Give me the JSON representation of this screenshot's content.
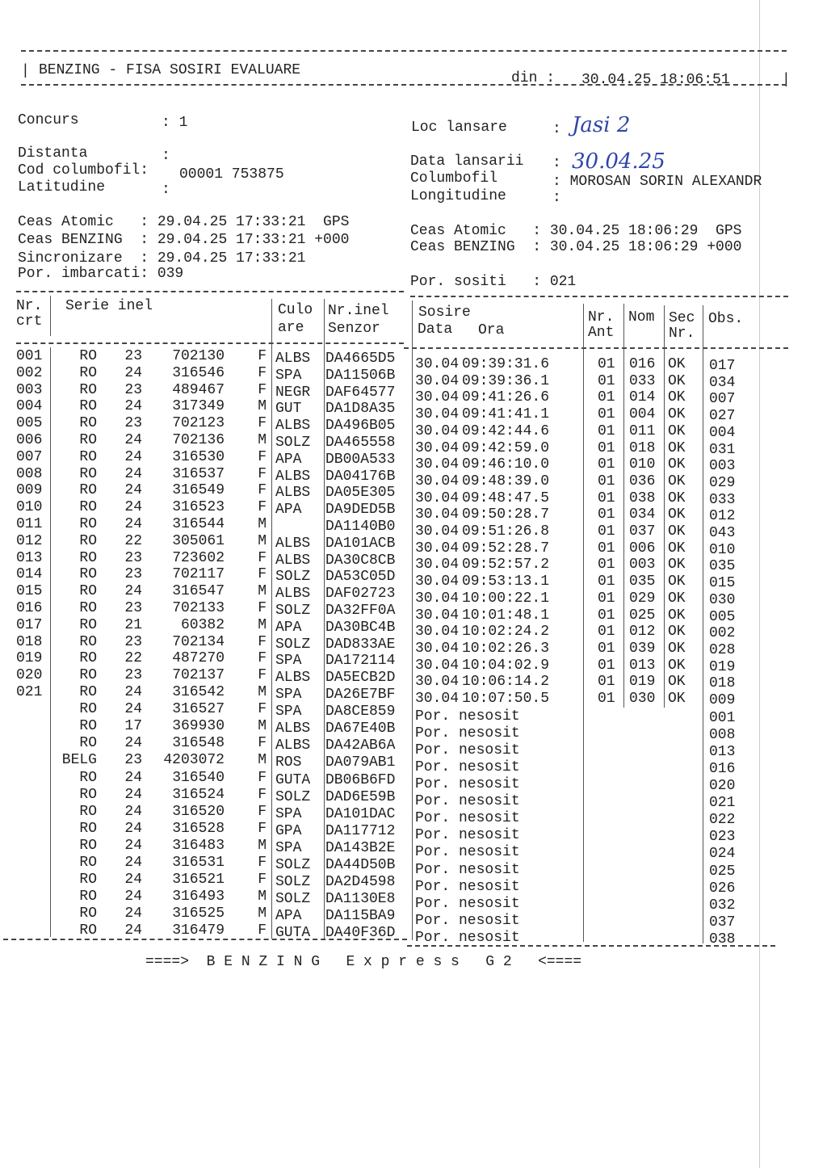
{
  "header": {
    "title": "BENZING - FISA SOSIRI EVALUARE",
    "din_label": "din :",
    "din_value": "30.04.25 18:06:51"
  },
  "info": {
    "concurs_label": "Concurs",
    "concurs_value": ": 1",
    "distanta_label": "Distanta",
    "distanta_value": ":",
    "cod_label": "Cod columbofil:",
    "cod_value": "00001 753875",
    "latitudine_label": "Latitudine",
    "latitudine_value": ":",
    "loc_label": "Loc lansare",
    "loc_sep": ":",
    "loc_value": "Jasi 2",
    "data_lansarii_label": "Data lansarii",
    "data_lansarii_sep": ":",
    "data_lansarii_value": "30.04.25",
    "columbofil_label": "Columbofil",
    "columbofil_value": ": MOROSAN SORIN ALEXANDR",
    "longitudine_label": "Longitudine",
    "longitudine_value": ":",
    "left_ceas_atomic": "Ceas Atomic   : 29.04.25 17:33:21  GPS",
    "left_ceas_benzing": "Ceas BENZING  : 29.04.25 17:33:21 +000",
    "sincronizare": "Sincronizare  : 29.04.25 17:33:21",
    "imbarcati": "Por. imbarcati: 039",
    "right_ceas_atomic": "Ceas Atomic   : 30.04.25 18:06:29  GPS",
    "right_ceas_benzing": "Ceas BENZING  : 30.04.25 18:06:29 +000",
    "sositi": "Por. sositi   : 021"
  },
  "columns": {
    "nr": "Nr.",
    "crt": "crt",
    "serie": "Serie inel",
    "culo": "Culo",
    "are": "are",
    "nrinel": "Nr.inel",
    "senzor": "Senzor",
    "sosire": "Sosire",
    "data": "Data",
    "ora": "Ora",
    "nrant1": "Nr.",
    "nrant2": "Ant",
    "nom": "Nom",
    "sec1": "Sec",
    "sec2": "Nr.",
    "obs": "Obs."
  },
  "rows": [
    [
      "001",
      "RO",
      "23",
      "702130",
      "F",
      "ALBS",
      "DA4665D5",
      "30.04",
      "09:39:31.6",
      "01",
      "016",
      "OK",
      "017"
    ],
    [
      "002",
      "RO",
      "24",
      "316546",
      "F",
      "SPA",
      "DA11506B",
      "30.04",
      "09:39:36.1",
      "01",
      "033",
      "OK",
      "034"
    ],
    [
      "003",
      "RO",
      "23",
      "489467",
      "F",
      "NEGR",
      "DAF64577",
      "30.04",
      "09:41:26.6",
      "01",
      "014",
      "OK",
      "007"
    ],
    [
      "004",
      "RO",
      "24",
      "317349",
      "M",
      "GUT",
      "DA1D8A35",
      "30.04",
      "09:41:41.1",
      "01",
      "004",
      "OK",
      "027"
    ],
    [
      "005",
      "RO",
      "23",
      "702123",
      "F",
      "ALBS",
      "DA496B05",
      "30.04",
      "09:42:44.6",
      "01",
      "011",
      "OK",
      "004"
    ],
    [
      "006",
      "RO",
      "24",
      "702136",
      "M",
      "SOLZ",
      "DA465558",
      "30.04",
      "09:42:59.0",
      "01",
      "018",
      "OK",
      "031"
    ],
    [
      "007",
      "RO",
      "24",
      "316530",
      "F",
      "APA",
      "DB00A533",
      "30.04",
      "09:46:10.0",
      "01",
      "010",
      "OK",
      "003"
    ],
    [
      "008",
      "RO",
      "24",
      "316537",
      "F",
      "ALBS",
      "DA04176B",
      "30.04",
      "09:48:39.0",
      "01",
      "036",
      "OK",
      "029"
    ],
    [
      "009",
      "RO",
      "24",
      "316549",
      "F",
      "ALBS",
      "DA05E305",
      "30.04",
      "09:48:47.5",
      "01",
      "038",
      "OK",
      "033"
    ],
    [
      "010",
      "RO",
      "24",
      "316523",
      "F",
      "APA",
      "DA9DED5B",
      "30.04",
      "09:50:28.7",
      "01",
      "034",
      "OK",
      "012"
    ],
    [
      "011",
      "RO",
      "24",
      "316544",
      "M",
      "",
      "DA1140B0",
      "30.04",
      "09:51:26.8",
      "01",
      "037",
      "OK",
      "043"
    ],
    [
      "012",
      "RO",
      "22",
      "305061",
      "M",
      "ALBS",
      "DA101ACB",
      "30.04",
      "09:52:28.7",
      "01",
      "006",
      "OK",
      "010"
    ],
    [
      "013",
      "RO",
      "23",
      "723602",
      "F",
      "ALBS",
      "DA30C8CB",
      "30.04",
      "09:52:57.2",
      "01",
      "003",
      "OK",
      "035"
    ],
    [
      "014",
      "RO",
      "23",
      "702117",
      "F",
      "SOLZ",
      "DA53C05D",
      "30.04",
      "09:53:13.1",
      "01",
      "035",
      "OK",
      "015"
    ],
    [
      "015",
      "RO",
      "24",
      "316547",
      "M",
      "ALBS",
      "DAF02723",
      "30.04",
      "10:00:22.1",
      "01",
      "029",
      "OK",
      "030"
    ],
    [
      "016",
      "RO",
      "23",
      "702133",
      "F",
      "SOLZ",
      "DA32FF0A",
      "30.04",
      "10:01:48.1",
      "01",
      "025",
      "OK",
      "005"
    ],
    [
      "017",
      "RO",
      "21",
      "60382",
      "M",
      "APA",
      "DA30BC4B",
      "30.04",
      "10:02:24.2",
      "01",
      "012",
      "OK",
      "002"
    ],
    [
      "018",
      "RO",
      "23",
      "702134",
      "F",
      "SOLZ",
      "DAD833AE",
      "30.04",
      "10:02:26.3",
      "01",
      "039",
      "OK",
      "028"
    ],
    [
      "019",
      "RO",
      "22",
      "487270",
      "F",
      "SPA",
      "DA172114",
      "30.04",
      "10:04:02.9",
      "01",
      "013",
      "OK",
      "019"
    ],
    [
      "020",
      "RO",
      "23",
      "702137",
      "F",
      "ALBS",
      "DA5ECB2D",
      "30.04",
      "10:06:14.2",
      "01",
      "019",
      "OK",
      "018"
    ],
    [
      "021",
      "RO",
      "24",
      "316542",
      "M",
      "SPA",
      "DA26E7BF",
      "30.04",
      "10:07:50.5",
      "01",
      "030",
      "OK",
      "009"
    ],
    [
      "",
      "RO",
      "24",
      "316527",
      "F",
      "SPA",
      "DA8CE859",
      "Por. nesosit",
      "",
      "",
      "",
      "",
      "001"
    ],
    [
      "",
      "RO",
      "17",
      "369930",
      "M",
      "ALBS",
      "DA67E40B",
      "Por. nesosit",
      "",
      "",
      "",
      "",
      "008"
    ],
    [
      "",
      "RO",
      "24",
      "316548",
      "F",
      "ALBS",
      "DA42AB6A",
      "Por. nesosit",
      "",
      "",
      "",
      "",
      "013"
    ],
    [
      "",
      "BELG",
      "23",
      "4203072",
      "M",
      "ROS",
      "DA079AB1",
      "Por. nesosit",
      "",
      "",
      "",
      "",
      "016"
    ],
    [
      "",
      "RO",
      "24",
      "316540",
      "F",
      "GUTA",
      "DB06B6FD",
      "Por. nesosit",
      "",
      "",
      "",
      "",
      "020"
    ],
    [
      "",
      "RO",
      "24",
      "316524",
      "F",
      "SOLZ",
      "DAD6E59B",
      "Por. nesosit",
      "",
      "",
      "",
      "",
      "021"
    ],
    [
      "",
      "RO",
      "24",
      "316520",
      "F",
      "SPA",
      "DA101DAC",
      "Por. nesosit",
      "",
      "",
      "",
      "",
      "022"
    ],
    [
      "",
      "RO",
      "24",
      "316528",
      "F",
      "GPA",
      "DA117712",
      "Por. nesosit",
      "",
      "",
      "",
      "",
      "023"
    ],
    [
      "",
      "RO",
      "24",
      "316483",
      "M",
      "SPA",
      "DA143B2E",
      "Por. nesosit",
      "",
      "",
      "",
      "",
      "024"
    ],
    [
      "",
      "RO",
      "24",
      "316531",
      "F",
      "SOLZ",
      "DA44D50B",
      "Por. nesosit",
      "",
      "",
      "",
      "",
      "025"
    ],
    [
      "",
      "RO",
      "24",
      "316521",
      "F",
      "SOLZ",
      "DA2D4598",
      "Por. nesosit",
      "",
      "",
      "",
      "",
      "026"
    ],
    [
      "",
      "RO",
      "24",
      "316493",
      "M",
      "SOLZ",
      "DA1130E8",
      "Por. nesosit",
      "",
      "",
      "",
      "",
      "032"
    ],
    [
      "",
      "RO",
      "24",
      "316525",
      "M",
      "APA",
      "DA115BA9",
      "Por. nesosit",
      "",
      "",
      "",
      "",
      "037"
    ],
    [
      "",
      "RO",
      "24",
      "316479",
      "F",
      "GUTA",
      "DA40F36D",
      "Por. nesosit",
      "",
      "",
      "",
      "",
      "038"
    ]
  ],
  "footer": "====>  B E N Z I N G   E x p r e s s   G 2   <===="
}
